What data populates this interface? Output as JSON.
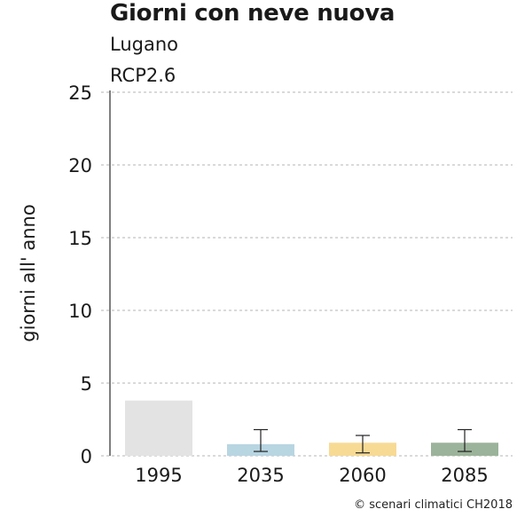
{
  "chart_data": {
    "type": "bar",
    "title": "Giorni con neve nuova",
    "subtitle_lines": [
      "Lugano",
      "RCP2.6"
    ],
    "ylabel": "giorni all' anno",
    "xlabel": "",
    "ylim": [
      0,
      25
    ],
    "yticks": [
      0,
      5,
      10,
      15,
      20,
      25
    ],
    "grid": true,
    "categories": [
      "1995",
      "2035",
      "2060",
      "2085"
    ],
    "values": [
      3.8,
      0.8,
      0.9,
      0.9
    ],
    "error_low": [
      null,
      0.3,
      0.2,
      0.3
    ],
    "error_high": [
      null,
      1.8,
      1.4,
      1.8
    ],
    "colors": [
      "#e3e3e3",
      "#b8d5e2",
      "#f7da94",
      "#9bb39a"
    ]
  },
  "footer": {
    "copyright": "© scenari climatici CH2018"
  }
}
